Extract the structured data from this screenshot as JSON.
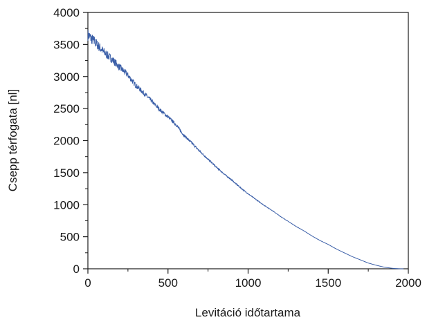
{
  "chart_data": {
    "type": "line",
    "xlabel": "Levitáció időtartama",
    "ylabel": "Csepp térfogata [nl]",
    "xlim": [
      0,
      2000
    ],
    "ylim": [
      0,
      4000
    ],
    "x_ticks": [
      0,
      500,
      1000,
      1500,
      2000
    ],
    "y_ticks": [
      0,
      500,
      1000,
      1500,
      2000,
      2500,
      3000,
      3500,
      4000
    ],
    "grid": false,
    "line_color": "#3b5fa8",
    "series": [
      {
        "x": [
          0,
          50,
          100,
          150,
          200,
          250,
          300,
          350,
          400,
          450,
          500,
          550,
          600,
          650,
          700,
          750,
          800,
          850,
          900,
          950,
          1000,
          1050,
          1100,
          1150,
          1200,
          1250,
          1300,
          1350,
          1400,
          1450,
          1500,
          1550,
          1600,
          1650,
          1700,
          1750,
          1800,
          1850,
          1900,
          1950,
          1970
        ],
        "values": [
          3650,
          3520,
          3380,
          3270,
          3140,
          3020,
          2860,
          2740,
          2610,
          2480,
          2370,
          2250,
          2080,
          1960,
          1830,
          1710,
          1590,
          1480,
          1380,
          1270,
          1170,
          1080,
          990,
          910,
          820,
          740,
          660,
          590,
          510,
          440,
          380,
          310,
          250,
          190,
          140,
          90,
          55,
          25,
          8,
          0,
          0
        ]
      }
    ]
  }
}
